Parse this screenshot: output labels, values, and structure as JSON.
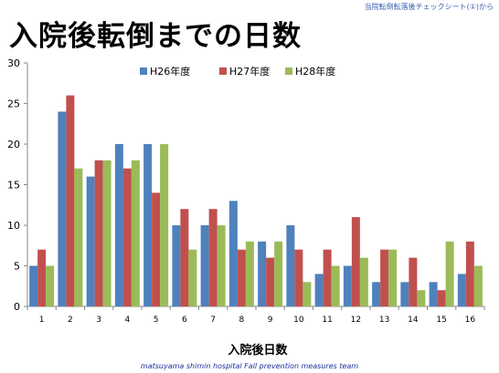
{
  "header": {
    "source_note": "当院転倒転落後チェックシート(①)から",
    "title": "入院後転倒までの日数"
  },
  "footer": {
    "team": "matsuyama shimin hospital Fall prevention measures team"
  },
  "colors": {
    "H26": "#4f81bd",
    "H27": "#c0504d",
    "H28": "#9bbb59"
  },
  "chart_data": {
    "type": "bar",
    "title": "",
    "xlabel": "入院後日数",
    "ylabel": "",
    "ylim": [
      0,
      30
    ],
    "yticks": [
      0,
      5,
      10,
      15,
      20,
      25,
      30
    ],
    "grid": false,
    "legend_position": "top",
    "categories": [
      "1",
      "2",
      "3",
      "4",
      "5",
      "6",
      "7",
      "8",
      "9",
      "10",
      "11",
      "12",
      "13",
      "14",
      "15",
      "16"
    ],
    "series": [
      {
        "name": "H26年度",
        "values": [
          5,
          24,
          16,
          20,
          20,
          10,
          10,
          13,
          8,
          10,
          4,
          5,
          3,
          3,
          3,
          4
        ]
      },
      {
        "name": "H27年度",
        "values": [
          7,
          26,
          18,
          17,
          14,
          12,
          12,
          7,
          6,
          7,
          7,
          11,
          7,
          6,
          2,
          8
        ]
      },
      {
        "name": "H28年度",
        "values": [
          5,
          17,
          18,
          18,
          20,
          7,
          10,
          8,
          8,
          3,
          5,
          6,
          7,
          2,
          8,
          5
        ]
      }
    ]
  }
}
